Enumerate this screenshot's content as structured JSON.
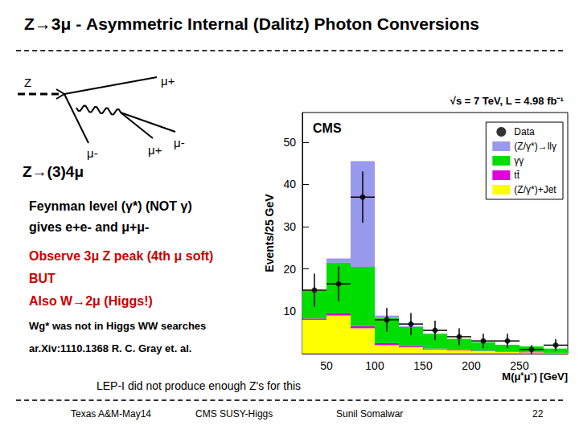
{
  "slide": {
    "title": "Z→3μ - Asymmetric Internal (Dalitz) Photon Conversions",
    "diagram": {
      "incoming": "Z",
      "outgoing": [
        "μ+",
        "μ-",
        "μ+",
        "μ-"
      ]
    },
    "heading": "Z→(3)4μ",
    "lines": [
      "Feynman level (γ*) (NOT γ)",
      "gives e+e- and μ+μ-"
    ],
    "highlights": [
      "Observe 3μ Z peak (4th μ soft)",
      "BUT",
      "Also W→2μ (Higgs!)"
    ],
    "references": [
      "Wg* was not in Higgs WW searches",
      "ar.Xiv:1110.1368 R. C. Gray et. al."
    ],
    "note": "LEP-I did not produce enough Z's for this",
    "footer": [
      "Texas A&M-May14",
      "CMS SUSY-Higgs",
      "Sunil Somalwar",
      "22"
    ]
  },
  "chart_data": {
    "type": "histogram",
    "title": "CMS",
    "subtitle": "√s = 7 TeV, L = 4.98 fb⁻¹",
    "xlabel": "M(μ⁺μ⁻) [GeV]",
    "ylabel": "Events/25 GeV",
    "bins": [
      25,
      50,
      75,
      100,
      125,
      150,
      175,
      200,
      225,
      250,
      275,
      300
    ],
    "series": [
      {
        "name": "Data",
        "type": "scatter",
        "color": "#000000",
        "values": [
          15,
          16.5,
          37,
          8,
          7,
          5.5,
          4,
          3,
          3,
          1,
          2
        ],
        "errors": [
          3.9,
          4.1,
          6.1,
          2.8,
          2.6,
          2.3,
          2,
          1.7,
          1.7,
          1,
          1.4
        ]
      },
      {
        "name": "(Z/γ*)→llγ",
        "color": "#9999ee",
        "values": [
          0,
          1,
          25,
          0.5,
          0.2,
          0,
          0,
          0,
          0,
          0,
          0
        ]
      },
      {
        "name": "γγ",
        "color": "#00dd00",
        "values": [
          6.5,
          12,
          14,
          6,
          4.5,
          3.5,
          2.5,
          2,
          1.6,
          1.3,
          1
        ]
      },
      {
        "name": "tt̄",
        "color": "#dd00dd",
        "values": [
          0.3,
          0.5,
          0.5,
          0.5,
          0.3,
          0.2,
          0.2,
          0.1,
          0.1,
          0.1,
          0
        ]
      },
      {
        "name": "(Z/γ*)+Jet",
        "color": "#ffff00",
        "values": [
          8,
          9,
          6,
          2,
          1.5,
          1,
          0.8,
          0.6,
          0.4,
          0.3,
          0.2
        ]
      }
    ],
    "stacked": true,
    "legend": "upper right",
    "grid": false,
    "xlim": [
      25,
      300
    ],
    "xticks": [
      50,
      100,
      150,
      200,
      250
    ],
    "ylim": [
      0,
      57
    ],
    "yticks": [
      10,
      20,
      30,
      40,
      50
    ]
  }
}
